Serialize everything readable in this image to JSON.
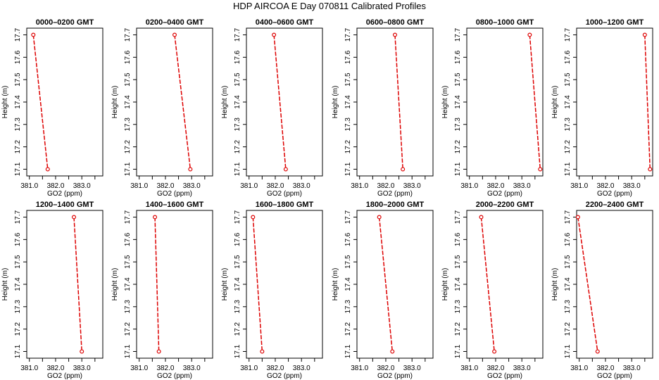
{
  "title": "HDP AIRCOA E  Day 070811  Calibrated Profiles",
  "colors": {
    "line": "#dd0000",
    "axis": "#000000"
  },
  "chart_data": {
    "type": "line",
    "xlabel": "GO2 (ppm)",
    "ylabel": "Height (m)",
    "xlim": [
      380.9,
      383.8
    ],
    "ylim": [
      17.07,
      17.73
    ],
    "xticks": [
      381.0,
      381.5,
      382.0,
      382.5,
      383.0,
      383.5
    ],
    "xtick_labels": [
      "381.0",
      "",
      "382.0",
      "",
      "383.0",
      ""
    ],
    "yticks": [
      17.1,
      17.2,
      17.3,
      17.4,
      17.5,
      17.6,
      17.7
    ],
    "ytick_labels": [
      "17.1",
      "17.2",
      "17.3",
      "17.4",
      "17.5",
      "17.6",
      "17.7"
    ],
    "panels": [
      {
        "title": "0000–0200 GMT",
        "points": [
          {
            "x": 381.15,
            "y": 17.7
          },
          {
            "x": 381.7,
            "y": 17.1
          }
        ]
      },
      {
        "title": "0200–0400 GMT",
        "points": [
          {
            "x": 382.35,
            "y": 17.7
          },
          {
            "x": 382.95,
            "y": 17.1
          }
        ]
      },
      {
        "title": "0400–0600 GMT",
        "points": [
          {
            "x": 381.95,
            "y": 17.7
          },
          {
            "x": 382.4,
            "y": 17.1
          }
        ]
      },
      {
        "title": "0600–0800 GMT",
        "points": [
          {
            "x": 382.35,
            "y": 17.7
          },
          {
            "x": 382.65,
            "y": 17.1
          }
        ]
      },
      {
        "title": "0800–1000 GMT",
        "points": [
          {
            "x": 383.3,
            "y": 17.7
          },
          {
            "x": 383.7,
            "y": 17.1
          }
        ]
      },
      {
        "title": "1000–1200 GMT",
        "points": [
          {
            "x": 383.5,
            "y": 17.7
          },
          {
            "x": 383.7,
            "y": 17.1
          }
        ]
      },
      {
        "title": "1200–1400 GMT",
        "points": [
          {
            "x": 382.7,
            "y": 17.7
          },
          {
            "x": 383.0,
            "y": 17.1
          }
        ]
      },
      {
        "title": "1400–1600 GMT",
        "points": [
          {
            "x": 381.6,
            "y": 17.7
          },
          {
            "x": 381.75,
            "y": 17.1
          }
        ]
      },
      {
        "title": "1600–1800 GMT",
        "points": [
          {
            "x": 381.15,
            "y": 17.7
          },
          {
            "x": 381.5,
            "y": 17.1
          }
        ]
      },
      {
        "title": "1800–2000 GMT",
        "points": [
          {
            "x": 381.75,
            "y": 17.7
          },
          {
            "x": 382.25,
            "y": 17.1
          }
        ]
      },
      {
        "title": "2000–2200 GMT",
        "points": [
          {
            "x": 381.45,
            "y": 17.7
          },
          {
            "x": 381.95,
            "y": 17.1
          }
        ]
      },
      {
        "title": "2200–2400 GMT",
        "points": [
          {
            "x": 380.95,
            "y": 17.7
          },
          {
            "x": 381.7,
            "y": 17.1
          }
        ]
      }
    ]
  }
}
